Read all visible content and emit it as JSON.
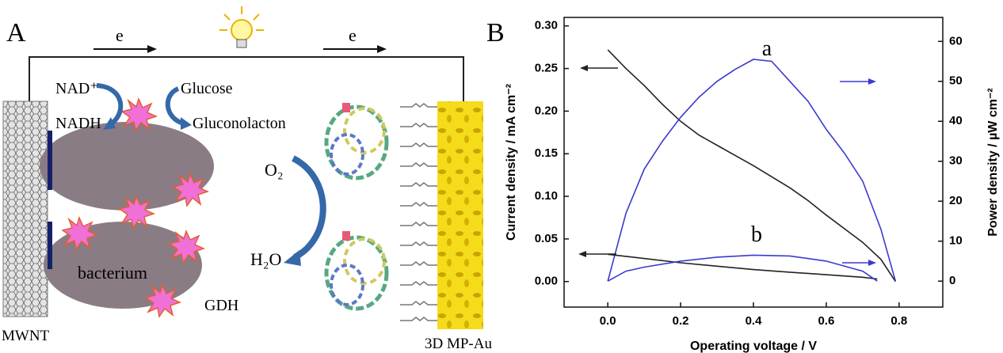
{
  "panel_a": {
    "label": "A",
    "electron_left": "e",
    "electron_right": "e",
    "nad": "NAD⁺",
    "nadh": "NADH",
    "glucose": "Glucose",
    "gluconolacton": "Gluconolacton",
    "oxygen": "O₂",
    "water": "H₂O",
    "bacterium": "bacterium",
    "gdh": "GDH",
    "anode": "MWNT",
    "cathode": "3D MP-Au"
  },
  "panel_b": {
    "label": "B"
  },
  "chart_data": {
    "type": "line",
    "xlabel": "Operating voltage / V",
    "ylabel": "Current density / mA cm⁻²",
    "y2label": "Power density / µW cm⁻²",
    "annotations": [
      "a",
      "b"
    ],
    "xlim": [
      -0.12,
      0.92
    ],
    "ylim": [
      -0.03,
      0.31
    ],
    "y2lim": [
      -6.5,
      66
    ],
    "xticks": [
      {
        "value": 0,
        "label": "0.0"
      },
      0.2,
      0.4,
      0.6,
      0.8
    ],
    "yticks": [
      {
        "value": 0,
        "label": "0.00"
      },
      0.05,
      {
        "value": 0.1,
        "label": "0.10"
      },
      0.15,
      {
        "value": 0.2,
        "label": "0.20"
      },
      0.25,
      {
        "value": 0.3,
        "label": "0.30"
      }
    ],
    "y2ticks": [
      0,
      10,
      20,
      30,
      40,
      50,
      60
    ],
    "series": [
      {
        "color": "#222222",
        "x": [
          0,
          0.05,
          0.1,
          0.15,
          0.2,
          0.25,
          0.3,
          0.35,
          0.4,
          0.45,
          0.5,
          0.55,
          0.6,
          0.65,
          0.7,
          0.75,
          0.79
        ],
        "values": [
          0.272,
          0.25,
          0.23,
          0.208,
          0.188,
          0.172,
          0.16,
          0.148,
          0.136,
          0.123,
          0.11,
          0.095,
          0.078,
          0.062,
          0.046,
          0.026,
          0.0
        ]
      },
      {
        "color": "#3a3ad0",
        "axis": "y2",
        "x": [
          0,
          0.05,
          0.1,
          0.15,
          0.2,
          0.25,
          0.3,
          0.35,
          0.4,
          0.45,
          0.5,
          0.55,
          0.6,
          0.65,
          0.7,
          0.75,
          0.79
        ],
        "values": [
          0,
          17,
          28,
          35,
          41,
          46,
          50,
          53,
          55.5,
          55,
          50,
          45,
          38,
          32,
          25,
          13,
          0
        ]
      },
      {
        "color": "#222222",
        "x": [
          0,
          0.1,
          0.2,
          0.3,
          0.4,
          0.5,
          0.6,
          0.7,
          0.74
        ],
        "values": [
          0.032,
          0.027,
          0.022,
          0.018,
          0.014,
          0.011,
          0.008,
          0.005,
          0.003
        ]
      },
      {
        "color": "#3a3ad0",
        "axis": "y2",
        "x": [
          0,
          0.05,
          0.1,
          0.2,
          0.3,
          0.4,
          0.5,
          0.6,
          0.7,
          0.74
        ],
        "values": [
          0,
          2.5,
          3.5,
          5,
          6,
          6.5,
          6.3,
          5,
          2.5,
          0
        ]
      }
    ]
  }
}
